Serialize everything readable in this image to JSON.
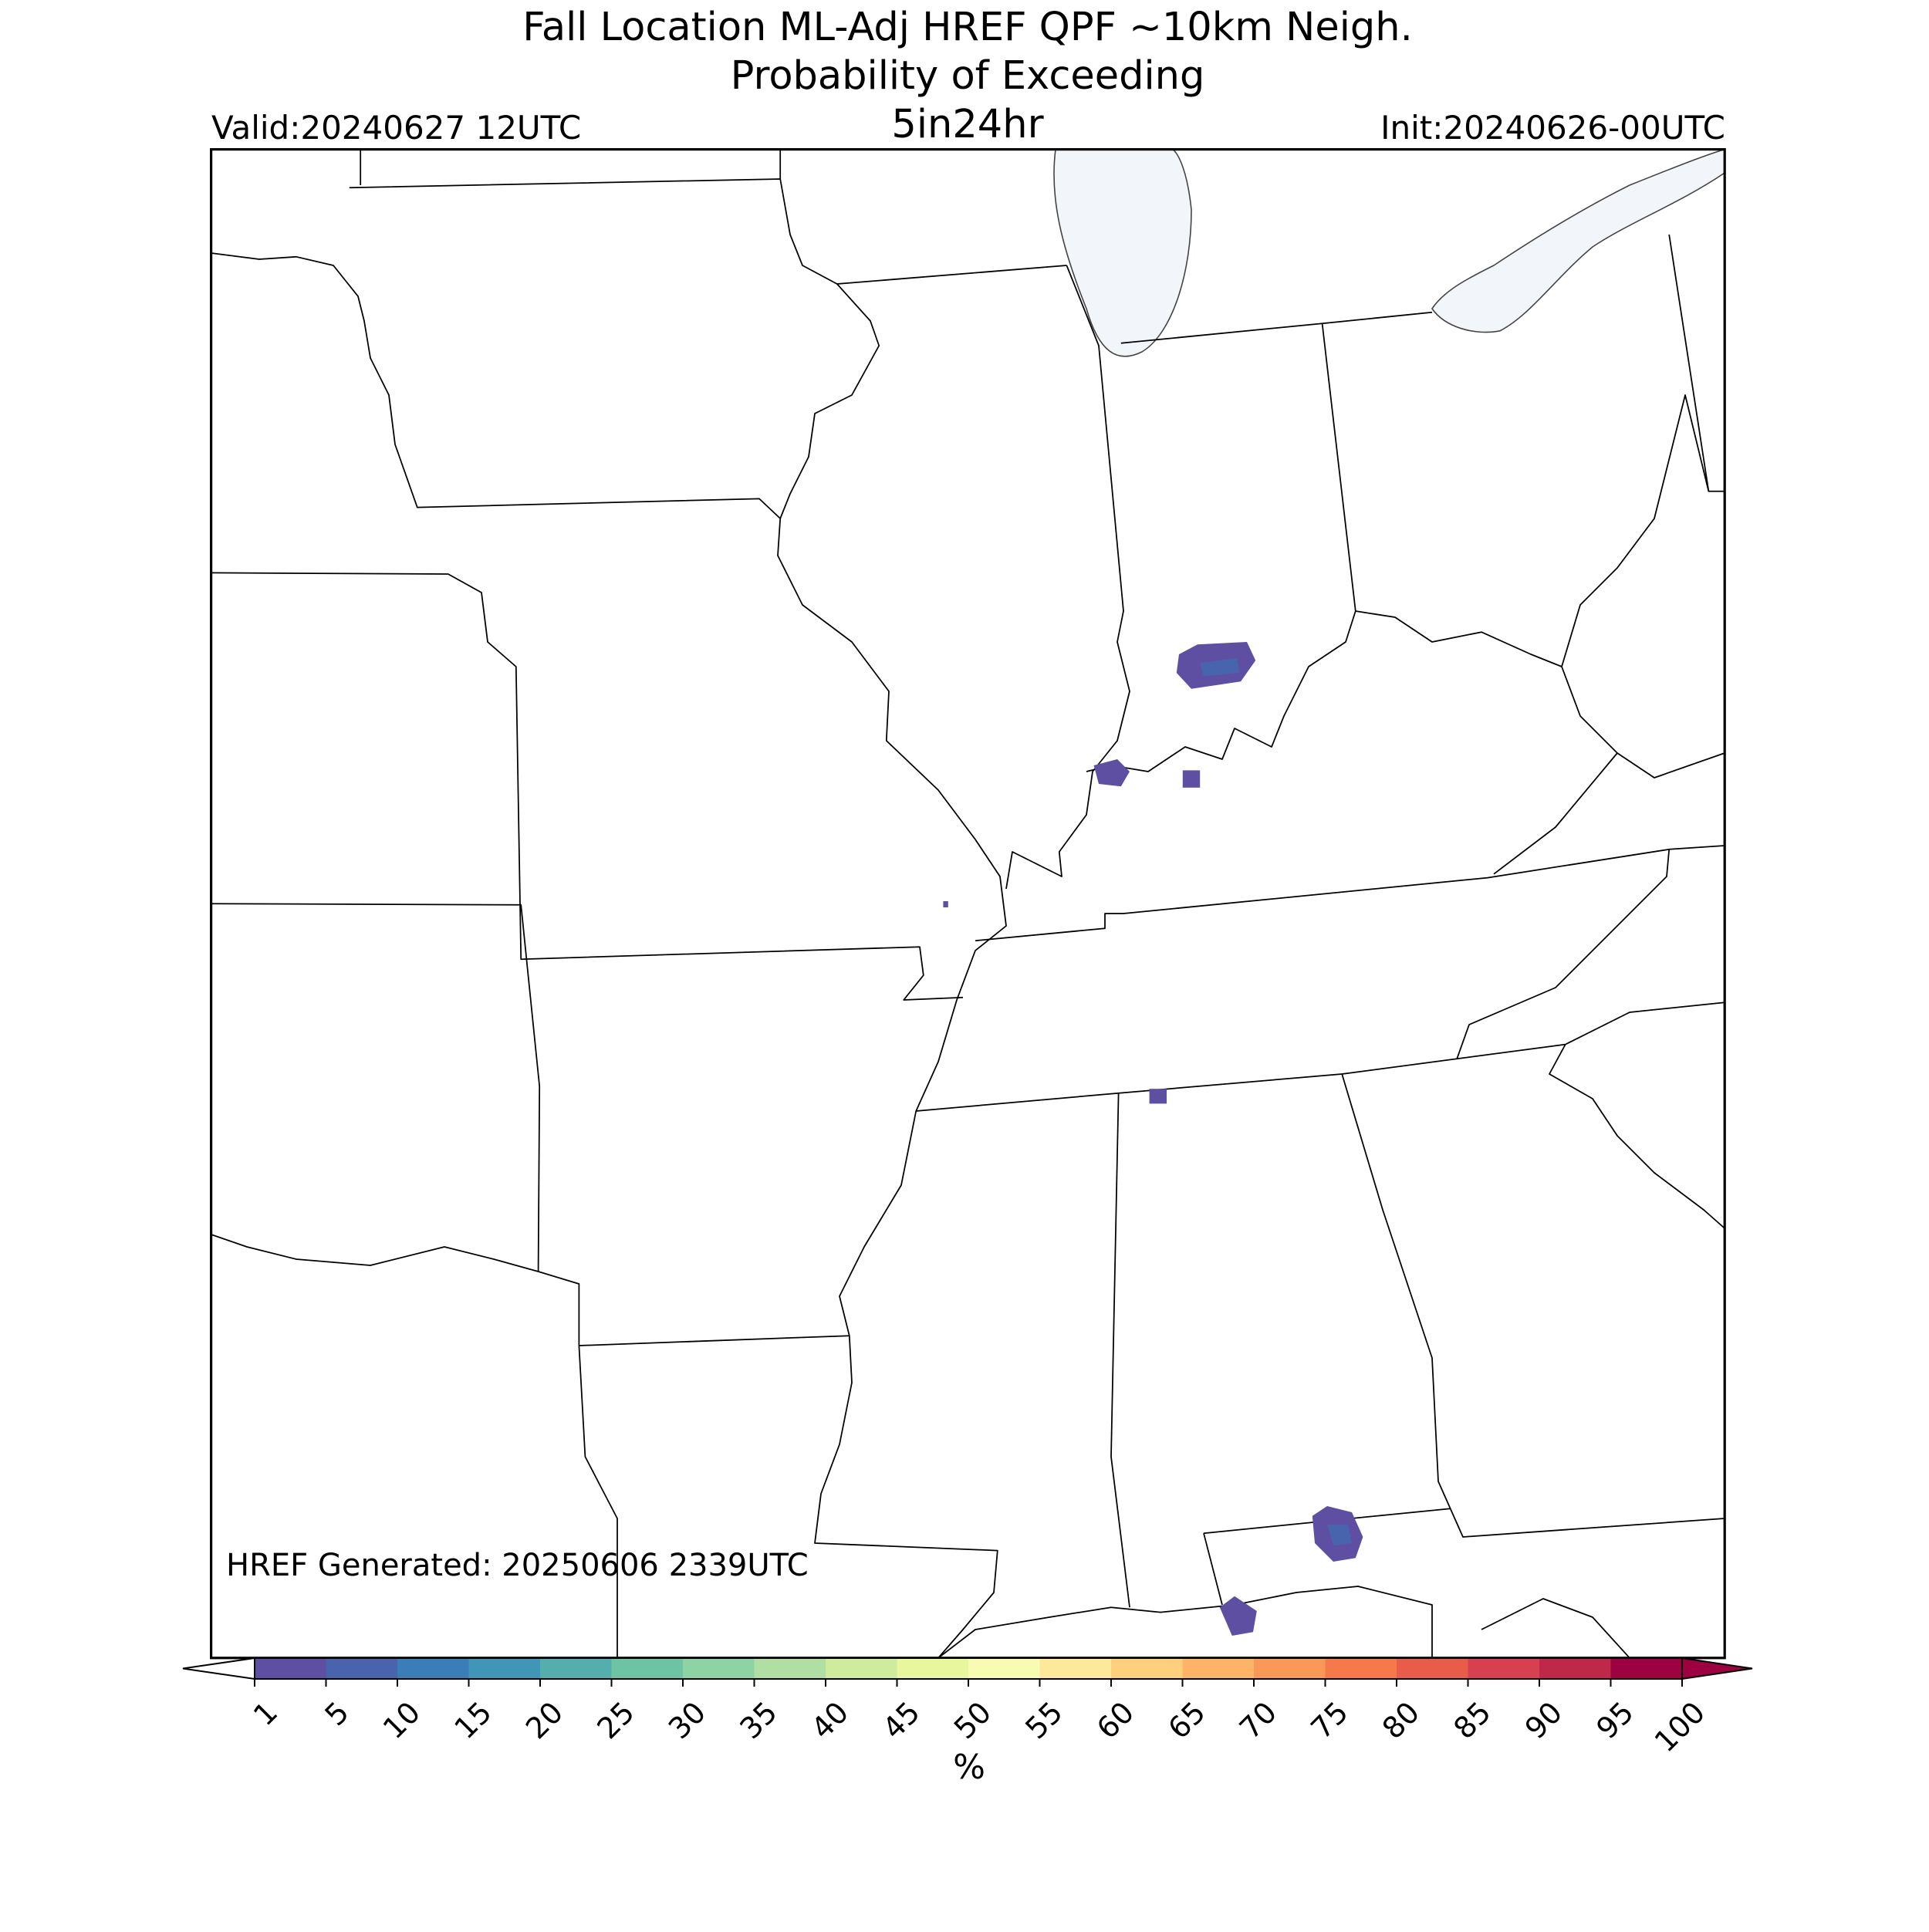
{
  "header": {
    "title_lines": [
      "Fall Location ML-Adj HREF QPF ~10km Neigh.",
      "Probability of Exceeding",
      "5in24hr"
    ],
    "valid": "Valid:20240627 12UTC",
    "init": "Init:20240626-00UTC"
  },
  "footer_note": "HREF Generated: 20250606 2339UTC",
  "colorbar": {
    "ticks": [
      1,
      5,
      10,
      15,
      20,
      25,
      30,
      35,
      40,
      45,
      50,
      55,
      60,
      65,
      70,
      75,
      80,
      85,
      90,
      95,
      100
    ],
    "colors": [
      "#5e4fa2",
      "#4764ad",
      "#3a7eb8",
      "#3f96b7",
      "#55aeae",
      "#6dc4a4",
      "#8dd3a4",
      "#afdfa2",
      "#cfec9d",
      "#e8f69c",
      "#f8fbb0",
      "#fee89a",
      "#fed07e",
      "#fdb466",
      "#fa9857",
      "#f67a49",
      "#e95c47",
      "#d7404e",
      "#c0284a",
      "#9e0142"
    ],
    "under_color": "#ffffff",
    "over_color": "#9e0142",
    "label": "%"
  }
}
